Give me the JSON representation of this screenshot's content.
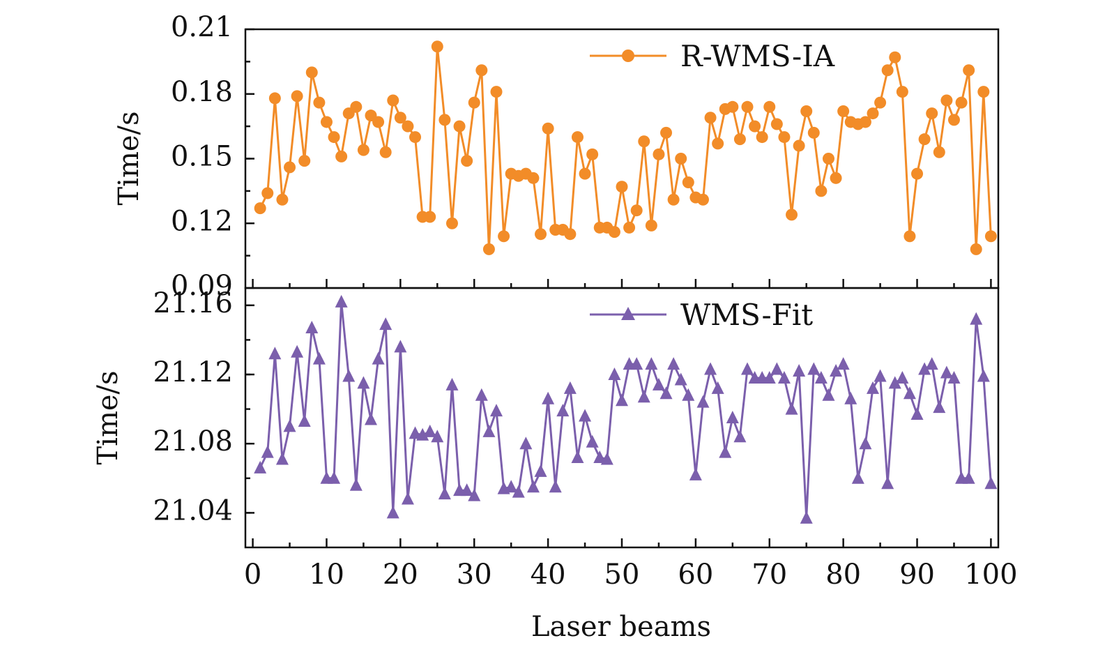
{
  "chart_data": [
    {
      "type": "line",
      "panel": "top",
      "ylabel": "Time/s",
      "ylim": [
        0.09,
        0.21
      ],
      "yticks": [
        "0.09",
        "0.12",
        "0.15",
        "0.18",
        "0.21"
      ],
      "xlim": [
        -1,
        101
      ],
      "series": [
        {
          "name": "R-WMS-IA",
          "color": "#F28C28",
          "marker": "circle",
          "x": [
            1,
            2,
            3,
            4,
            5,
            6,
            7,
            8,
            9,
            10,
            11,
            12,
            13,
            14,
            15,
            16,
            17,
            18,
            19,
            20,
            21,
            22,
            23,
            24,
            25,
            26,
            27,
            28,
            29,
            30,
            31,
            32,
            33,
            34,
            35,
            36,
            37,
            38,
            39,
            40,
            41,
            42,
            43,
            44,
            45,
            46,
            47,
            48,
            49,
            50,
            51,
            52,
            53,
            54,
            55,
            56,
            57,
            58,
            59,
            60,
            61,
            62,
            63,
            64,
            65,
            66,
            67,
            68,
            69,
            70,
            71,
            72,
            73,
            74,
            75,
            76,
            77,
            78,
            79,
            80,
            81,
            82,
            83,
            84,
            85,
            86,
            87,
            88,
            89,
            90,
            91,
            92,
            93,
            94,
            95,
            96,
            97,
            98,
            99,
            100
          ],
          "values": [
            0.127,
            0.134,
            0.178,
            0.131,
            0.146,
            0.179,
            0.149,
            0.19,
            0.176,
            0.167,
            0.16,
            0.151,
            0.171,
            0.174,
            0.154,
            0.17,
            0.167,
            0.153,
            0.177,
            0.169,
            0.165,
            0.16,
            0.123,
            0.123,
            0.202,
            0.168,
            0.12,
            0.165,
            0.149,
            0.176,
            0.191,
            0.108,
            0.181,
            0.114,
            0.143,
            0.142,
            0.143,
            0.141,
            0.115,
            0.164,
            0.117,
            0.117,
            0.115,
            0.16,
            0.143,
            0.152,
            0.118,
            0.118,
            0.116,
            0.137,
            0.118,
            0.126,
            0.158,
            0.119,
            0.152,
            0.162,
            0.131,
            0.15,
            0.139,
            0.132,
            0.131,
            0.169,
            0.157,
            0.173,
            0.174,
            0.159,
            0.174,
            0.165,
            0.16,
            0.174,
            0.166,
            0.16,
            0.124,
            0.156,
            0.172,
            0.162,
            0.135,
            0.15,
            0.141,
            0.172,
            0.167,
            0.166,
            0.167,
            0.171,
            0.176,
            0.191,
            0.197,
            0.181,
            0.114,
            0.143,
            0.159,
            0.171,
            0.153,
            0.177,
            0.168,
            0.176,
            0.191,
            0.108,
            0.181,
            0.114
          ]
        }
      ]
    },
    {
      "type": "line",
      "panel": "bottom",
      "ylabel": "Time/s",
      "ylim": [
        21.02,
        21.17
      ],
      "yticks": [
        "21.04",
        "21.08",
        "21.12",
        "21.16"
      ],
      "xlim": [
        -1,
        101
      ],
      "xlabel": "Laser beams",
      "xticks": [
        "0",
        "10",
        "20",
        "30",
        "40",
        "50",
        "60",
        "70",
        "80",
        "90",
        "100"
      ],
      "series": [
        {
          "name": "WMS-Fit",
          "color": "#7B5FAC",
          "marker": "triangle",
          "x": [
            1,
            2,
            3,
            4,
            5,
            6,
            7,
            8,
            9,
            10,
            11,
            12,
            13,
            14,
            15,
            16,
            17,
            18,
            19,
            20,
            21,
            22,
            23,
            24,
            25,
            26,
            27,
            28,
            29,
            30,
            31,
            32,
            33,
            34,
            35,
            36,
            37,
            38,
            39,
            40,
            41,
            42,
            43,
            44,
            45,
            46,
            47,
            48,
            49,
            50,
            51,
            52,
            53,
            54,
            55,
            56,
            57,
            58,
            59,
            60,
            61,
            62,
            63,
            64,
            65,
            66,
            67,
            68,
            69,
            70,
            71,
            72,
            73,
            74,
            75,
            76,
            77,
            78,
            79,
            80,
            81,
            82,
            83,
            84,
            85,
            86,
            87,
            88,
            89,
            90,
            91,
            92,
            93,
            94,
            95,
            96,
            97,
            98,
            99,
            100
          ],
          "values": [
            21.066,
            21.075,
            21.132,
            21.071,
            21.09,
            21.133,
            21.093,
            21.147,
            21.129,
            21.06,
            21.06,
            21.162,
            21.119,
            21.056,
            21.115,
            21.094,
            21.129,
            21.149,
            21.04,
            21.136,
            21.048,
            21.086,
            21.085,
            21.087,
            21.084,
            21.051,
            21.114,
            21.053,
            21.053,
            21.05,
            21.108,
            21.087,
            21.099,
            21.054,
            21.055,
            21.052,
            21.08,
            21.055,
            21.064,
            21.106,
            21.055,
            21.099,
            21.112,
            21.072,
            21.096,
            21.081,
            21.072,
            21.071,
            21.12,
            21.105,
            21.126,
            21.126,
            21.107,
            21.126,
            21.114,
            21.109,
            21.126,
            21.117,
            21.108,
            21.062,
            21.104,
            21.123,
            21.112,
            21.075,
            21.095,
            21.084,
            21.123,
            21.118,
            21.118,
            21.118,
            21.123,
            21.118,
            21.1,
            21.122,
            21.037,
            21.123,
            21.118,
            21.108,
            21.122,
            21.126,
            21.106,
            21.06,
            21.08,
            21.112,
            21.119,
            21.057,
            21.115,
            21.118,
            21.109,
            21.097,
            21.123,
            21.126,
            21.101,
            21.121,
            21.118,
            21.06,
            21.06,
            21.152,
            21.119,
            21.057
          ]
        }
      ]
    }
  ]
}
